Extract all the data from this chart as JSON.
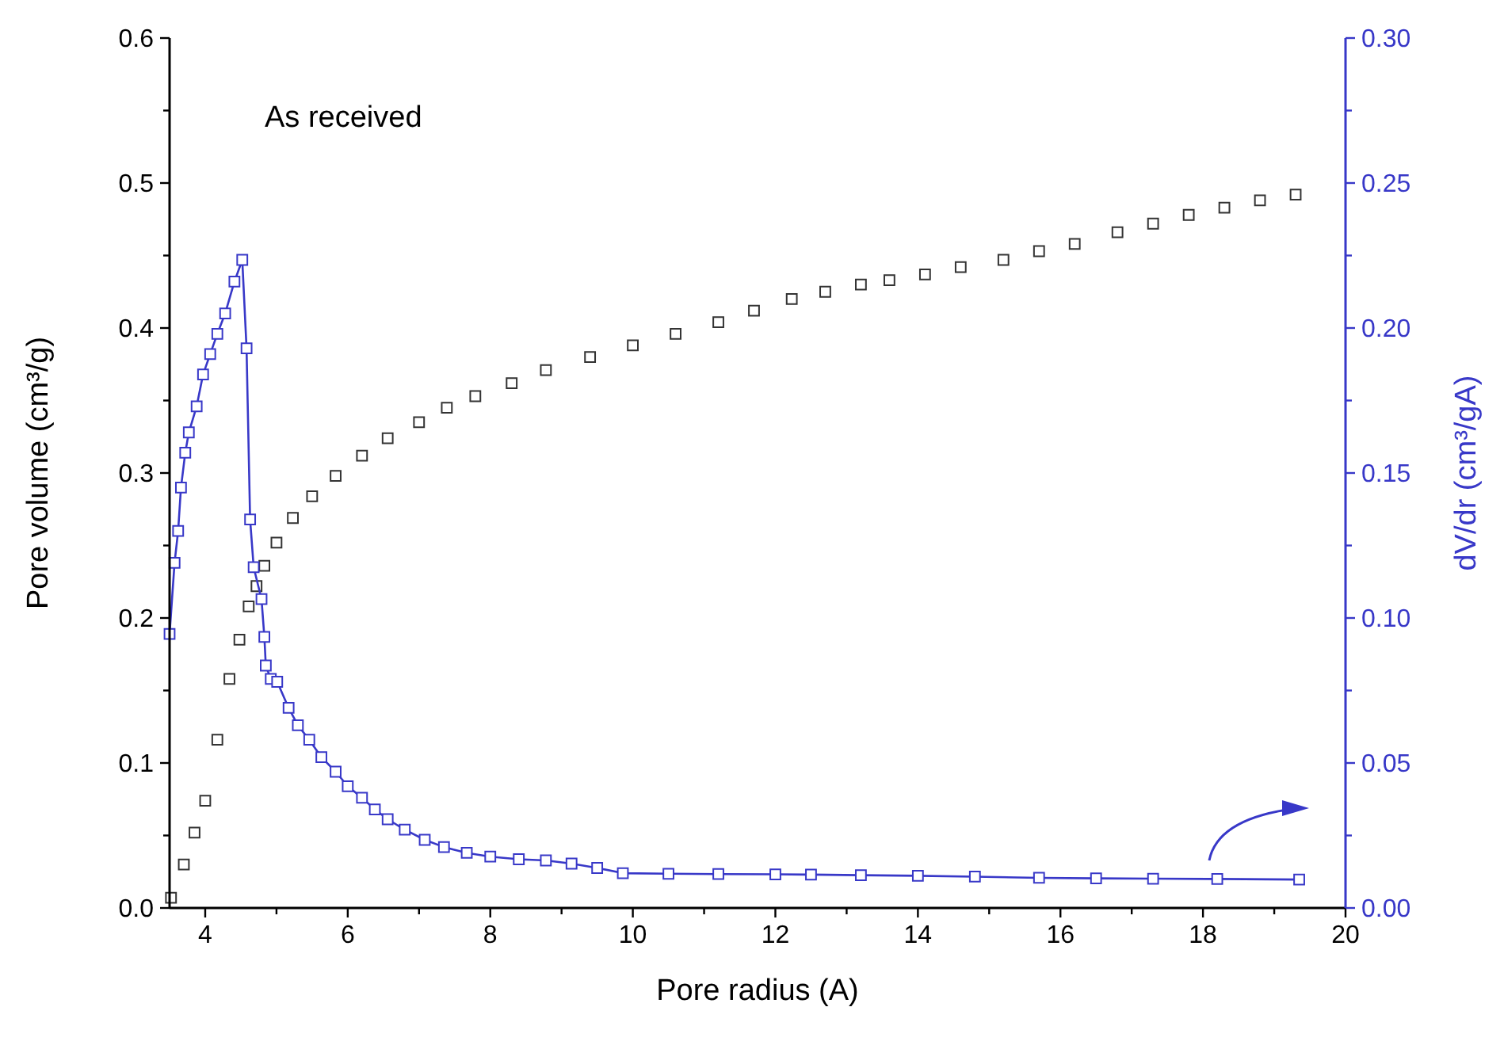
{
  "chart_data": {
    "type": "line",
    "xlabel": "Pore radius (A)",
    "ylabel": "Pore volume (cm³/g)",
    "y2label": "dV/dr (cm³/gA)",
    "annotations": [
      "As received"
    ],
    "marker": "square",
    "xlim": [
      3.5,
      20
    ],
    "ylim": [
      0,
      0.6
    ],
    "y2lim": [
      0,
      0.3
    ],
    "xticks": [
      4,
      {
        "value": 5,
        "label": null
      },
      6,
      {
        "value": 7,
        "label": null
      },
      8,
      {
        "value": 9,
        "label": null
      },
      10,
      {
        "value": 11,
        "label": null
      },
      12,
      {
        "value": 13,
        "label": null
      },
      14,
      {
        "value": 15,
        "label": null
      },
      16,
      {
        "value": 17,
        "label": null
      },
      18,
      {
        "value": 19,
        "label": null
      },
      20
    ],
    "yticks": [
      {
        "value": 0,
        "label": "0.0"
      },
      {
        "value": 0.05,
        "label": null
      },
      0.1,
      {
        "value": 0.15,
        "label": null
      },
      0.2,
      {
        "value": 0.25,
        "label": null
      },
      0.3,
      {
        "value": 0.35,
        "label": null
      },
      0.4,
      {
        "value": 0.45,
        "label": null
      },
      0.5,
      {
        "value": 0.55,
        "label": null
      },
      0.6
    ],
    "y2ticks": [
      {
        "value": 0,
        "label": "0.00"
      },
      {
        "value": 0.025,
        "label": null
      },
      0.05,
      {
        "value": 0.075,
        "label": null
      },
      {
        "value": 0.1,
        "label": "0.10"
      },
      {
        "value": 0.125,
        "label": null
      },
      0.15,
      {
        "value": 0.175,
        "label": null
      },
      {
        "value": 0.2,
        "label": "0.20"
      },
      {
        "value": 0.225,
        "label": null
      },
      0.25,
      {
        "value": 0.275,
        "label": null
      },
      {
        "value": 0.3,
        "label": "0.30"
      }
    ],
    "series": [
      {
        "type": "scatter",
        "color": "#333333",
        "x": [
          3.52,
          3.7,
          3.85,
          4.0,
          4.17,
          4.34,
          4.48,
          4.61,
          4.72,
          4.83,
          5.0,
          5.23,
          5.5,
          5.83,
          6.2,
          6.56,
          7.0,
          7.39,
          7.79,
          8.3,
          8.78,
          9.4,
          10.0,
          10.6,
          11.2,
          11.7,
          12.23,
          12.7,
          13.2,
          13.6,
          14.1,
          14.6,
          15.2,
          15.7,
          16.2,
          16.8,
          17.3,
          17.8,
          18.3,
          18.8,
          19.3
        ],
        "values": [
          0.007,
          0.03,
          0.052,
          0.074,
          0.116,
          0.158,
          0.185,
          0.208,
          0.222,
          0.236,
          0.252,
          0.269,
          0.284,
          0.298,
          0.312,
          0.324,
          0.335,
          0.345,
          0.353,
          0.362,
          0.371,
          0.38,
          0.388,
          0.396,
          0.404,
          0.412,
          0.42,
          0.425,
          0.43,
          0.433,
          0.437,
          0.442,
          0.447,
          0.453,
          0.458,
          0.466,
          0.472,
          0.478,
          0.483,
          0.488,
          0.492
        ]
      },
      {
        "type": "line",
        "axis": "y2",
        "color": "#3838c8",
        "x": [
          3.5,
          3.57,
          3.62,
          3.66,
          3.72,
          3.77,
          3.88,
          3.97,
          4.07,
          4.17,
          4.28,
          4.41,
          4.52,
          4.58,
          4.63,
          4.68,
          4.79,
          4.83,
          4.85,
          4.92,
          5.01,
          5.17,
          5.3,
          5.46,
          5.63,
          5.83,
          6.0,
          6.2,
          6.38,
          6.56,
          6.8,
          7.08,
          7.35,
          7.67,
          8.0,
          8.4,
          8.78,
          9.14,
          9.5,
          9.86,
          10.5,
          11.2,
          12.0,
          12.5,
          13.2,
          14.0,
          14.8,
          15.7,
          16.5,
          17.3,
          18.2,
          19.35
        ],
        "values": [
          0.0945,
          0.119,
          0.13,
          0.145,
          0.157,
          0.164,
          0.173,
          0.184,
          0.191,
          0.198,
          0.205,
          0.216,
          0.2235,
          0.193,
          0.134,
          0.1175,
          0.1065,
          0.0935,
          0.0836,
          0.079,
          0.078,
          0.069,
          0.063,
          0.058,
          0.052,
          0.047,
          0.042,
          0.038,
          0.034,
          0.0306,
          0.027,
          0.0235,
          0.021,
          0.019,
          0.0177,
          0.0168,
          0.0164,
          0.0153,
          0.0138,
          0.012,
          0.0118,
          0.0117,
          0.0116,
          0.0115,
          0.0113,
          0.0111,
          0.0108,
          0.0104,
          0.0102,
          0.0101,
          0.01,
          0.0098
        ]
      }
    ]
  }
}
